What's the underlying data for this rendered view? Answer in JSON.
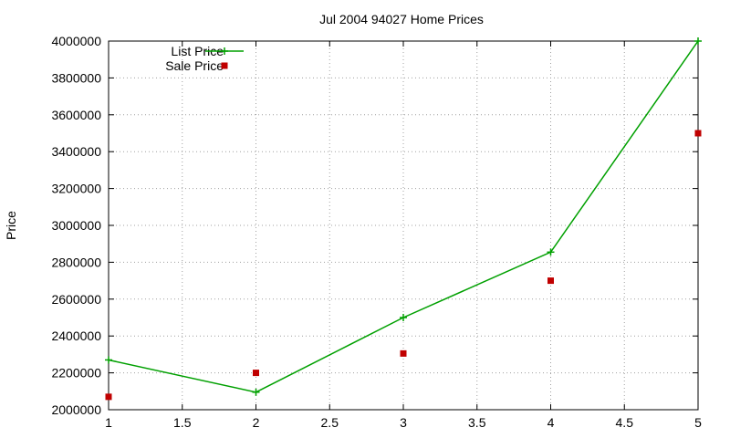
{
  "chart_data": {
    "type": "line",
    "title": "Jul 2004 94027 Home Prices",
    "xlabel": "",
    "ylabel": "Price",
    "xlim": [
      1,
      5
    ],
    "ylim": [
      2000000,
      4000000
    ],
    "x_ticks": [
      "1",
      "1.5",
      "2",
      "2.5",
      "3",
      "3.5",
      "4",
      "4.5",
      "5"
    ],
    "y_ticks": [
      "2000000",
      "2200000",
      "2400000",
      "2600000",
      "2800000",
      "3000000",
      "3200000",
      "3400000",
      "3600000",
      "3800000",
      "4000000"
    ],
    "grid": true,
    "legend_position": "top-left",
    "series": [
      {
        "name": "List Price",
        "style": "line-with-plus-markers",
        "color": "#00a000",
        "x": [
          1,
          2,
          3,
          4,
          5
        ],
        "values": [
          2270000,
          2095000,
          2500000,
          2855000,
          4000000
        ]
      },
      {
        "name": "Sale Price",
        "style": "square-markers",
        "color": "#c00000",
        "x": [
          1,
          2,
          3,
          4,
          5
        ],
        "values": [
          2070000,
          2200000,
          2305000,
          2700000,
          3500000
        ]
      }
    ]
  }
}
